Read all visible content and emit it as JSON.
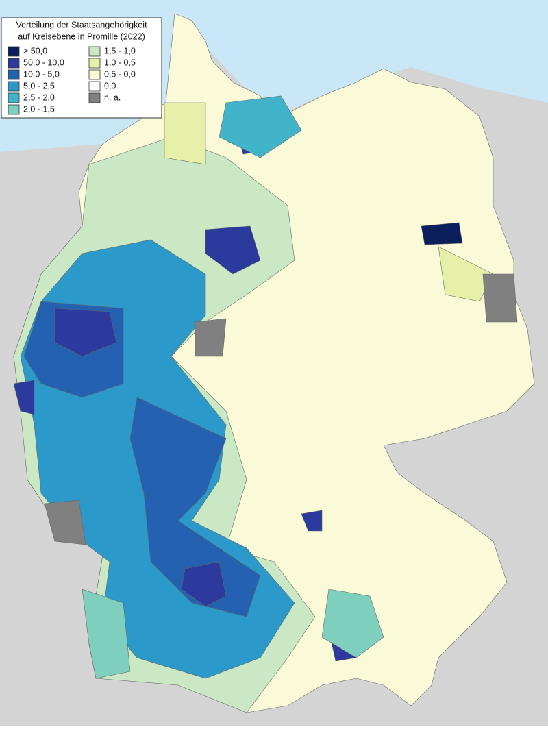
{
  "legend": {
    "title": [
      "Verteilung der Staatsangehörigkeit",
      "auf Kreisebene in Promille (2022)"
    ],
    "items": [
      {
        "label": "> 50,0",
        "color": "#0b1f5c"
      },
      {
        "label": "50,0 - 10,0",
        "color": "#2c3a9d"
      },
      {
        "label": "10,0 - 5,0",
        "color": "#2462b1"
      },
      {
        "label": "5,0 - 2,5",
        "color": "#2b99c9"
      },
      {
        "label": "2,5 - 2,0",
        "color": "#41b4c9"
      },
      {
        "label": "2,0 - 1,5",
        "color": "#7fcfbf"
      },
      {
        "label": "1,5 - 1,0",
        "color": "#c9e8c3"
      },
      {
        "label": "1,0 - 0,5",
        "color": "#e7f0a9"
      },
      {
        "label": "0,5 - 0,0",
        "color": "#fafad9"
      },
      {
        "label": "0,0",
        "color": "#ffffff"
      },
      {
        "label": "n. a.",
        "color": "#808080"
      }
    ]
  }
}
